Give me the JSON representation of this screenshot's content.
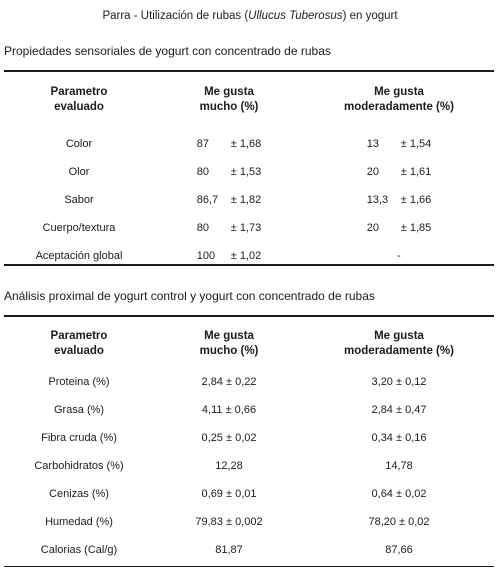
{
  "header": {
    "prefix": "Parra - Utilización de rubas (",
    "italic": "Ullucus Tuberosus",
    "suffix": ") en yogurt"
  },
  "table1": {
    "title": "Propiedades sensoriales de yogurt con concentrado de rubas",
    "headers": [
      [
        "Parametro",
        "evaluado"
      ],
      [
        "Me gusta",
        "mucho (%)"
      ],
      [
        "Me gusta",
        "moderadamente (%)"
      ]
    ],
    "rows": [
      {
        "label": "Color",
        "v1": "87",
        "e1": "± 1,68",
        "v2": "13",
        "e2": "± 1,54"
      },
      {
        "label": "Olor",
        "v1": "80",
        "e1": "± 1,53",
        "v2": "20",
        "e2": "± 1,61"
      },
      {
        "label": "Sabor",
        "v1": "86,7",
        "e1": "± 1,82",
        "v2": "13,3",
        "e2": "± 1,66"
      },
      {
        "label": "Cuerpo/textura",
        "v1": "80",
        "e1": "± 1,73",
        "v2": "20",
        "e2": "± 1,85"
      },
      {
        "label": "Aceptación global",
        "v1": "100",
        "e1": "± 1,02",
        "v2": "-",
        "e2": ""
      }
    ]
  },
  "table2": {
    "title": "Análisis proximal de yogurt control y yogurt con concentrado de rubas",
    "headers": [
      [
        "Parametro",
        "evaluado"
      ],
      [
        "Me gusta",
        "mucho (%)"
      ],
      [
        "Me gusta",
        "moderadamente (%)"
      ]
    ],
    "rows": [
      {
        "label": "Proteina (%)",
        "c1": "2,84 ± 0,22",
        "c2": "3,20 ± 0,12"
      },
      {
        "label": "Grasa (%)",
        "c1": "4,11 ± 0,66",
        "c2": "2,84 ± 0,47"
      },
      {
        "label": "Fibra cruda (%)",
        "c1": "0,25 ± 0,02",
        "c2": "0,34 ± 0,16"
      },
      {
        "label": "Carbohidratos (%)",
        "c1": "12,28",
        "c2": "14,78"
      },
      {
        "label": "Cenizas (%)",
        "c1": "0,69 ± 0,01",
        "c2": "0,64 ± 0,02"
      },
      {
        "label": "Humedad (%)",
        "c1": "79,83 ± 0,002",
        "c2": "78,20 ± 0,02"
      },
      {
        "label": "Calorias (Cal/g)",
        "c1": "81,87",
        "c2": "87,66"
      }
    ]
  }
}
